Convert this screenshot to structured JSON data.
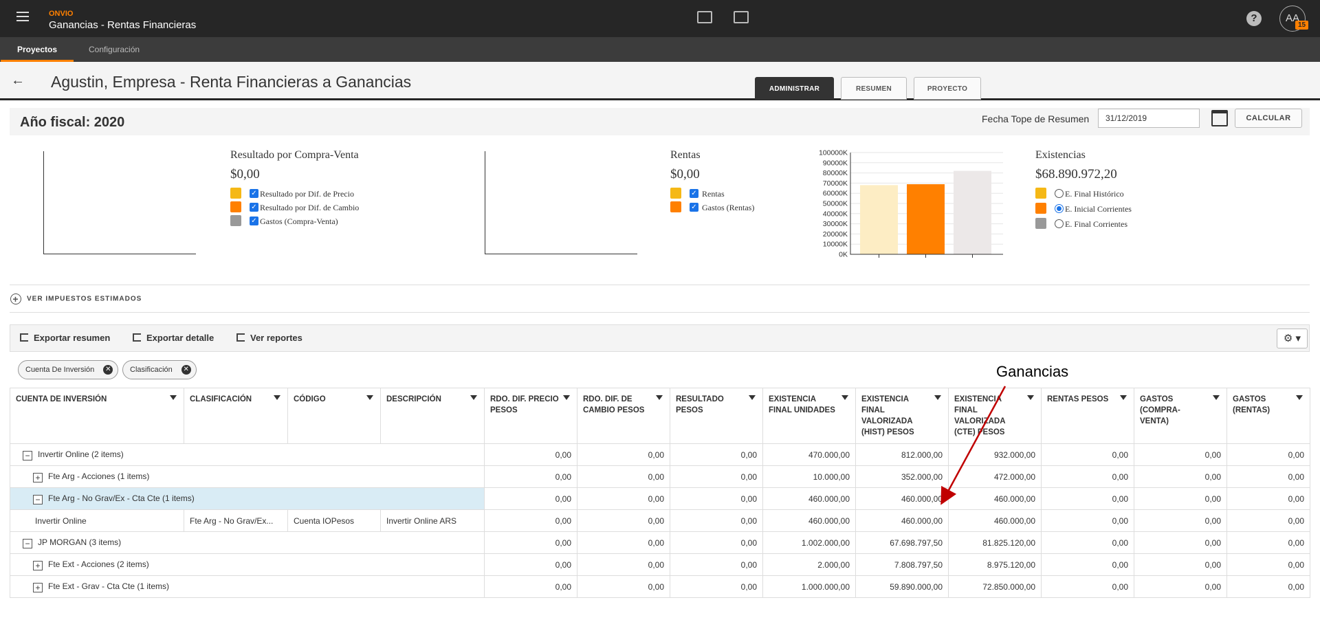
{
  "app": {
    "brand": "ONVIO",
    "title": "Ganancias - Rentas Financieras",
    "avatar": "AA",
    "badge": "15"
  },
  "subnav": {
    "tabs": [
      {
        "label": "Proyectos",
        "active": true
      },
      {
        "label": "Configuración",
        "active": false
      }
    ]
  },
  "header": {
    "title": "Agustin, Empresa - Renta Financieras a Ganancias",
    "tabs": [
      "ADMINISTRAR",
      "RESUMEN",
      "PROYECTO"
    ]
  },
  "fiscal": {
    "title": "Año fiscal: 2020",
    "fecha_label": "Fecha Tope de Resumen",
    "fecha_value": "31/12/2019",
    "calcular": "CALCULAR"
  },
  "panels": {
    "compra_venta": {
      "title": "Resultado por Compra-Venta",
      "total": "$0,00",
      "items": [
        "Resultado por Dif. de Precio",
        "Resultado por Dif. de Cambio",
        "Gastos (Compra-Venta)"
      ]
    },
    "rentas": {
      "title": "Rentas",
      "total": "$0,00",
      "items": [
        "Rentas",
        "Gastos (Rentas)"
      ]
    },
    "existencias": {
      "title": "Existencias",
      "total": "$68.890.972,20",
      "items": [
        "E. Final Histórico",
        "E. Inicial Corrientes",
        "E. Final Corrientes"
      ],
      "selected": 1
    }
  },
  "colors": {
    "yellow": "#f5b816",
    "orange": "#ff8000",
    "gray": "#999999",
    "yellow_light": "#fdedc4",
    "gray_light": "#ece8e8"
  },
  "chart_data": {
    "type": "bar",
    "ylim": [
      0,
      100000
    ],
    "yticks": [
      "0K",
      "10000K",
      "20000K",
      "30000K",
      "40000K",
      "50000K",
      "60000K",
      "70000K",
      "80000K",
      "90000K",
      "100000K"
    ],
    "series": [
      {
        "values": [
          68000,
          68900,
          82000
        ]
      }
    ]
  },
  "impuestos": {
    "label": "VER IMPUESTOS ESTIMADOS"
  },
  "toolbar": {
    "exportar_resumen": "Exportar resumen",
    "exportar_detalle": "Exportar detalle",
    "ver_reportes": "Ver reportes"
  },
  "chips": [
    "Cuenta De Inversión",
    "Clasificación"
  ],
  "annotation": "Ganancias",
  "table": {
    "columns": [
      "CUENTA DE INVERSIÓN",
      "CLASIFICACIÓN",
      "CÓDIGO",
      "DESCRIPCIÓN",
      "RDO. DIF. PRECIO PESOS",
      "RDO. DIF. DE CAMBIO PESOS",
      "RESULTADO PESOS",
      "EXISTENCIA FINAL UNIDADES",
      "EXISTENCIA FINAL VALORIZADA (HIST) PESOS",
      "EXISTENCIA FINAL VALORIZADA (CTE) PESOS",
      "RENTAS PESOS",
      "GASTOS (COMPRA-VENTA)",
      "GASTOS (RENTAS)"
    ],
    "rows": [
      {
        "type": "group",
        "level": 0,
        "sign": "−",
        "label": "Invertir Online (2 items)",
        "values": [
          "0,00",
          "0,00",
          "0,00",
          "470.000,00",
          "812.000,00",
          "932.000,00",
          "0,00",
          "0,00",
          "0,00"
        ]
      },
      {
        "type": "group",
        "level": 1,
        "sign": "+",
        "label": "Fte Arg - Acciones (1 items)",
        "values": [
          "0,00",
          "0,00",
          "0,00",
          "10.000,00",
          "352.000,00",
          "472.000,00",
          "0,00",
          "0,00",
          "0,00"
        ]
      },
      {
        "type": "group",
        "level": 1,
        "sign": "−",
        "label": "Fte Arg - No Grav/Ex - Cta Cte (1 items)",
        "selected": true,
        "values": [
          "0,00",
          "0,00",
          "0,00",
          "460.000,00",
          "460.000,00",
          "460.000,00",
          "0,00",
          "0,00",
          "0,00"
        ]
      },
      {
        "type": "data",
        "cells": [
          "Invertir Online",
          "Fte Arg - No Grav/Ex...",
          "Cuenta IOPesos",
          "Invertir Online ARS"
        ],
        "values": [
          "0,00",
          "0,00",
          "0,00",
          "460.000,00",
          "460.000,00",
          "460.000,00",
          "0,00",
          "0,00",
          "0,00"
        ]
      },
      {
        "type": "group",
        "level": 0,
        "sign": "−",
        "label": "JP MORGAN (3 items)",
        "values": [
          "0,00",
          "0,00",
          "0,00",
          "1.002.000,00",
          "67.698.797,50",
          "81.825.120,00",
          "0,00",
          "0,00",
          "0,00"
        ]
      },
      {
        "type": "group",
        "level": 1,
        "sign": "+",
        "label": "Fte Ext - Acciones (2 items)",
        "values": [
          "0,00",
          "0,00",
          "0,00",
          "2.000,00",
          "7.808.797,50",
          "8.975.120,00",
          "0,00",
          "0,00",
          "0,00"
        ]
      },
      {
        "type": "group",
        "level": 1,
        "sign": "+",
        "label": "Fte Ext - Grav - Cta Cte (1 items)",
        "values": [
          "0,00",
          "0,00",
          "0,00",
          "1.000.000,00",
          "59.890.000,00",
          "72.850.000,00",
          "0,00",
          "0,00",
          "0,00"
        ]
      }
    ]
  }
}
